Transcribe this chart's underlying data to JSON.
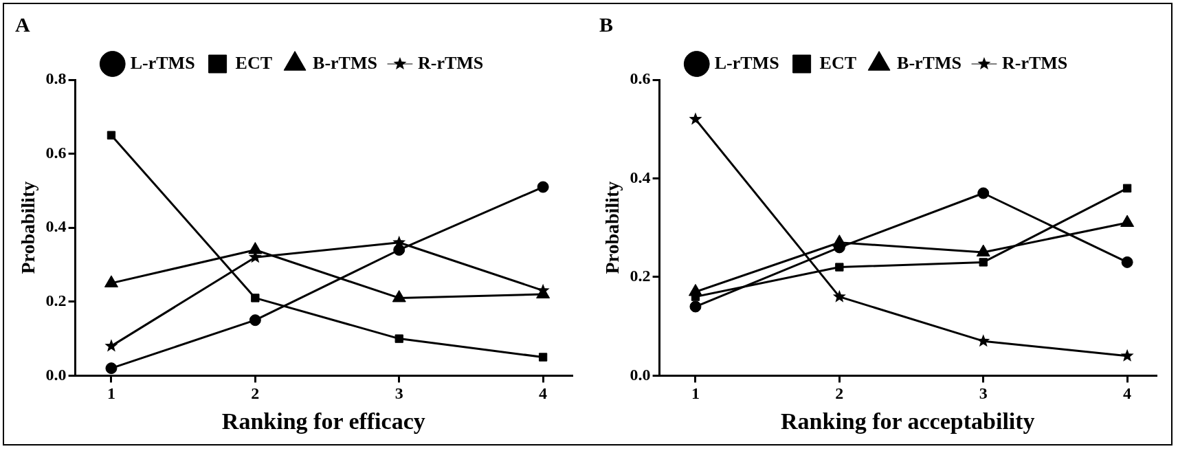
{
  "chart_data": [
    {
      "type": "line",
      "title": "A",
      "xlabel": "Ranking for efficacy",
      "ylabel": "Probability",
      "x": [
        1,
        2,
        3,
        4
      ],
      "xlim": [
        0.75,
        4.2
      ],
      "xticks": [
        1,
        2,
        3,
        4
      ],
      "ylim": [
        0,
        0.8
      ],
      "yticks": [
        {
          "value": 0,
          "label": "0.0"
        },
        {
          "value": 0.2,
          "label": "0.2"
        },
        {
          "value": 0.4,
          "label": "0.4"
        },
        {
          "value": 0.6,
          "label": "0.6"
        },
        {
          "value": 0.8,
          "label": "0.8"
        }
      ],
      "grid": false,
      "legend": "top",
      "line_style": "solid",
      "series": [
        {
          "name": "L-rTMS",
          "color": "#000000",
          "marker": "circle",
          "values": [
            0.02,
            0.15,
            0.34,
            0.51
          ]
        },
        {
          "name": "ECT",
          "color": "#000000",
          "marker": "square",
          "values": [
            0.65,
            0.21,
            0.1,
            0.05
          ]
        },
        {
          "name": "B-rTMS",
          "color": "#000000",
          "marker": "triangle",
          "values": [
            0.25,
            0.34,
            0.21,
            0.22
          ]
        },
        {
          "name": "R-rTMS",
          "color": "#000000",
          "marker": "star",
          "values": [
            0.08,
            0.32,
            0.36,
            0.23
          ]
        }
      ]
    },
    {
      "type": "line",
      "title": "B",
      "xlabel": "Ranking for acceptability",
      "ylabel": "Probability",
      "x": [
        1,
        2,
        3,
        4
      ],
      "xlim": [
        0.75,
        4.2
      ],
      "xticks": [
        1,
        2,
        3,
        4
      ],
      "ylim": [
        0,
        0.6
      ],
      "yticks": [
        {
          "value": 0,
          "label": "0.0"
        },
        {
          "value": 0.2,
          "label": "0.2"
        },
        {
          "value": 0.4,
          "label": "0.4"
        },
        {
          "value": 0.6,
          "label": "0.6"
        }
      ],
      "grid": false,
      "legend": "top",
      "line_style": "solid",
      "series": [
        {
          "name": "L-rTMS",
          "color": "#000000",
          "marker": "circle",
          "values": [
            0.14,
            0.26,
            0.37,
            0.23
          ]
        },
        {
          "name": "ECT",
          "color": "#000000",
          "marker": "square",
          "values": [
            0.16,
            0.22,
            0.23,
            0.38
          ]
        },
        {
          "name": "B-rTMS",
          "color": "#000000",
          "marker": "triangle",
          "values": [
            0.17,
            0.27,
            0.25,
            0.31
          ]
        },
        {
          "name": "R-rTMS",
          "color": "#000000",
          "marker": "star",
          "values": [
            0.52,
            0.16,
            0.07,
            0.04
          ]
        }
      ]
    }
  ]
}
